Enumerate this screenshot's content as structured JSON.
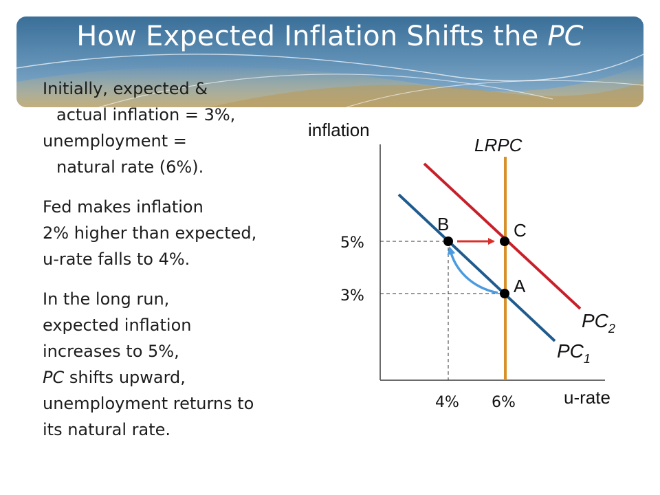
{
  "slide": {
    "title_main": "How Expected Inflation Shifts the ",
    "title_italic": "PC",
    "paragraph1": {
      "line1": "Initially, expected &",
      "line2": "actual inflation = 3%,",
      "line3": "unemployment =",
      "line4": "natural rate (6%)."
    },
    "paragraph2": {
      "line1": "Fed makes inflation",
      "line2": "2% higher than expected,",
      "line3": "u-rate falls to 4%."
    },
    "paragraph3": {
      "line1": "In the long run,",
      "line2": "expected inflation",
      "line3": "increases to 5%,",
      "line4_italic": "PC",
      "line4_rest": " shifts upward,",
      "line5": "unemployment returns to",
      "line6": "its natural rate."
    }
  },
  "diagram": {
    "axis_y_label": "inflation",
    "axis_x_label": "u-rate",
    "lrpc_label": "LRPC",
    "pc1_label": "PC",
    "pc1_sub": "1",
    "pc2_label": "PC",
    "pc2_sub": "2",
    "tick_5": "5%",
    "tick_3": "3%",
    "tick_4": "4%",
    "tick_6": "6%",
    "point_a": "A",
    "point_b": "B",
    "point_c": "C",
    "colors": {
      "pc1": "#1f5b8e",
      "pc2": "#c8202a",
      "lrpc": "#d8912a",
      "arrow_red": "#d8302a",
      "arrow_blue": "#4a9be0",
      "banner": "#4a7ea6"
    }
  }
}
